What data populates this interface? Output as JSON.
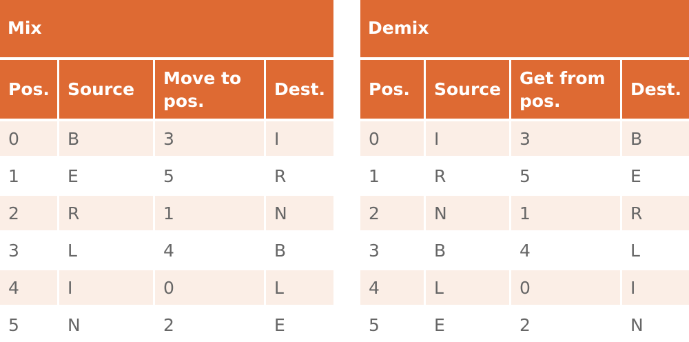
{
  "mix": {
    "title": "Mix",
    "headers": [
      "Pos.",
      "Source",
      "Move to pos.",
      "Dest."
    ],
    "rows": [
      [
        "0",
        "B",
        "3",
        "I"
      ],
      [
        "1",
        "E",
        "5",
        "R"
      ],
      [
        "2",
        "R",
        "1",
        "N"
      ],
      [
        "3",
        "L",
        "4",
        "B"
      ],
      [
        "4",
        "I",
        "0",
        "L"
      ],
      [
        "5",
        "N",
        "2",
        "E"
      ]
    ]
  },
  "demix": {
    "title": "Demix",
    "headers": [
      "Pos.",
      "Source",
      "Get from pos.",
      "Dest."
    ],
    "rows": [
      [
        "0",
        "I",
        "3",
        "B"
      ],
      [
        "1",
        "R",
        "5",
        "E"
      ],
      [
        "2",
        "N",
        "1",
        "R"
      ],
      [
        "3",
        "B",
        "4",
        "L"
      ],
      [
        "4",
        "L",
        "0",
        "I"
      ],
      [
        "5",
        "E",
        "2",
        "N"
      ]
    ]
  },
  "colors": {
    "header_bg": "#de6a33",
    "header_text": "#ffffff",
    "stripe_bg": "#fbeee6",
    "body_text": "#666666"
  }
}
